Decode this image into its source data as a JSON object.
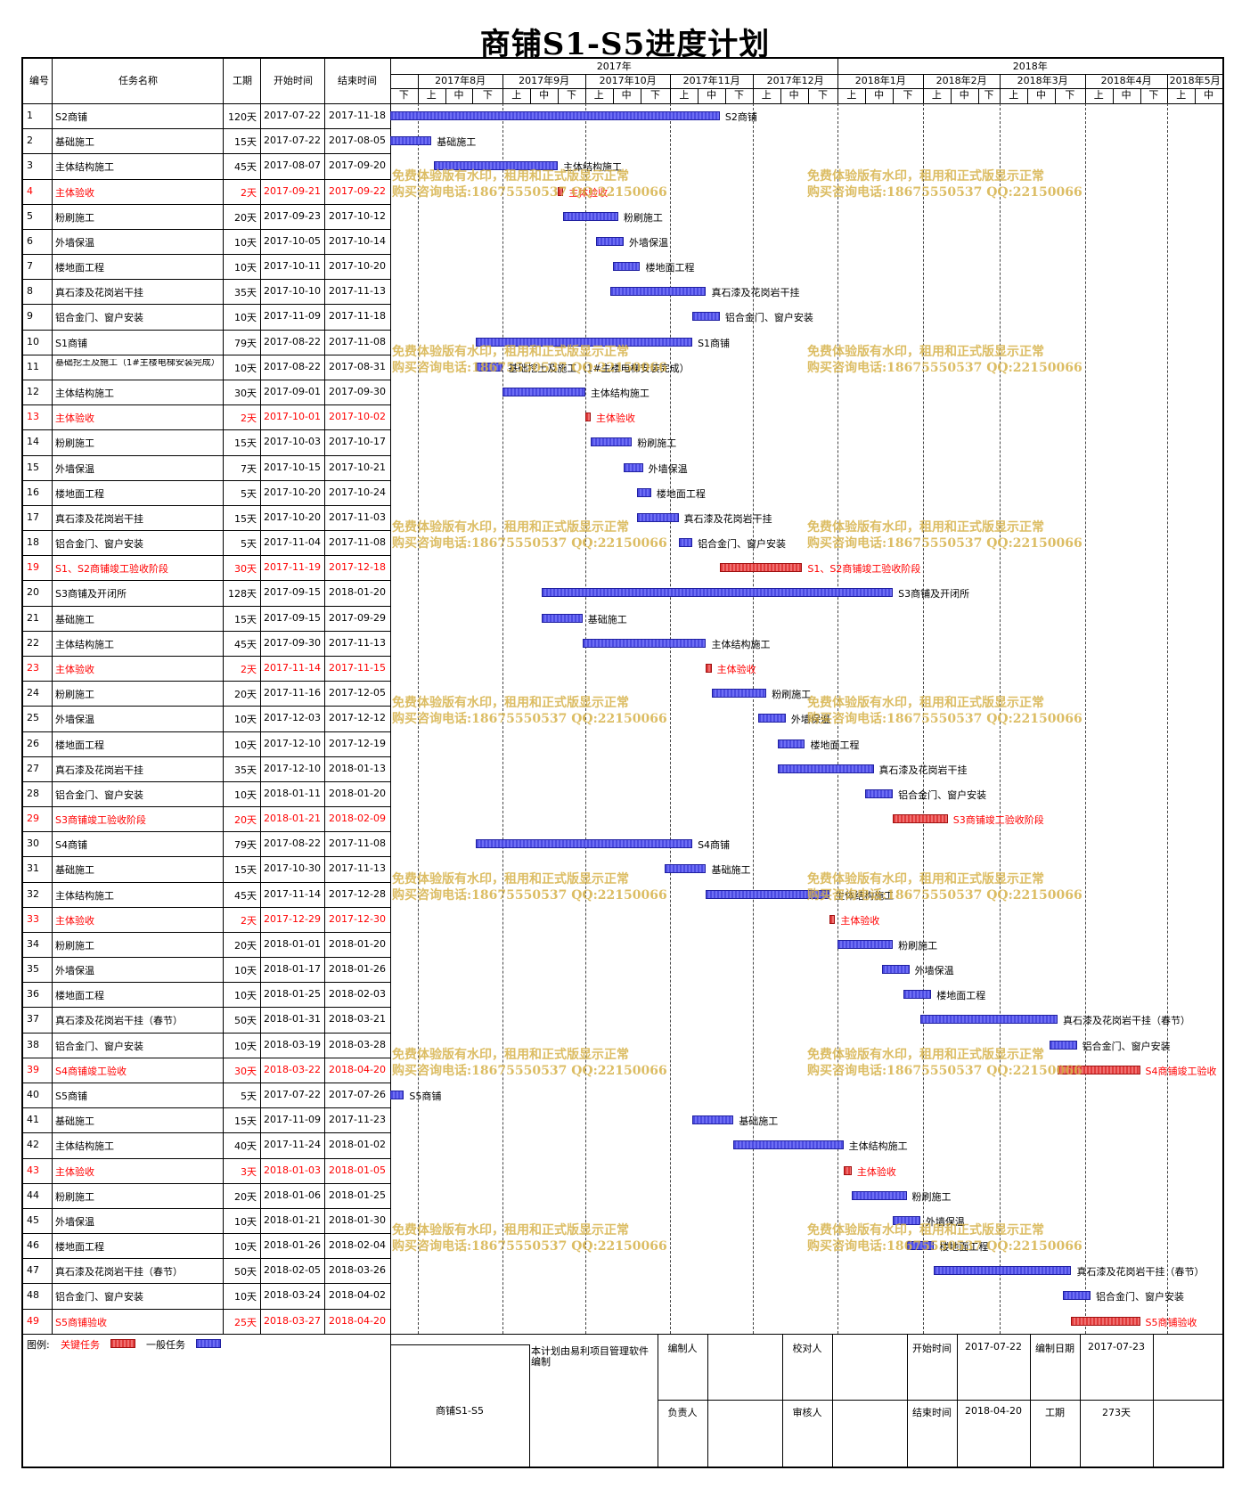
{
  "title": "商铺S1-S5进度计划",
  "headers": {
    "id": "编号",
    "name": "任务名称",
    "duration": "工期",
    "start": "开始时间",
    "end": "结束时间"
  },
  "timeline": {
    "years": [
      "2017年",
      "2018年"
    ],
    "months": [
      "2017年8月",
      "2017年9月",
      "2017年10月",
      "2017年11月",
      "2017年12月",
      "2018年1月",
      "2018年2月",
      "2018年3月",
      "2018年4月",
      "2018年5月"
    ],
    "periods": [
      "下",
      "上",
      "中",
      "下",
      "上",
      "中",
      "下",
      "上",
      "中",
      "下",
      "上",
      "中",
      "下",
      "上",
      "中",
      "下",
      "上",
      "中",
      "下",
      "上",
      "中",
      "下",
      "上",
      "中",
      "下",
      "上",
      "中",
      "下",
      "上",
      "中"
    ]
  },
  "watermark": {
    "line1": "免费体验版有水印，租用和正式版显示正常",
    "line2": "购买咨询电话:18675550537 QQ:22150066"
  },
  "chart_data": {
    "type": "gantt",
    "title": "商铺S1-S5进度计划",
    "x_range": [
      "2017-07-22",
      "2018-05-21"
    ],
    "tasks": [
      {
        "id": "1",
        "name": "S2商铺",
        "duration": "120天",
        "start": "2017-07-22",
        "end": "2017-11-18",
        "critical": false,
        "label": "S2商铺"
      },
      {
        "id": "2",
        "name": "基础施工",
        "duration": "15天",
        "start": "2017-07-22",
        "end": "2017-08-05",
        "critical": false,
        "label": "基础施工"
      },
      {
        "id": "3",
        "name": "主体结构施工",
        "duration": "45天",
        "start": "2017-08-07",
        "end": "2017-09-20",
        "critical": false,
        "label": "主体结构施工"
      },
      {
        "id": "4",
        "name": "主体验收",
        "duration": "2天",
        "start": "2017-09-21",
        "end": "2017-09-22",
        "critical": true,
        "label": "主体验收"
      },
      {
        "id": "5",
        "name": "粉刷施工",
        "duration": "20天",
        "start": "2017-09-23",
        "end": "2017-10-12",
        "critical": false,
        "label": "粉刷施工"
      },
      {
        "id": "6",
        "name": "外墙保温",
        "duration": "10天",
        "start": "2017-10-05",
        "end": "2017-10-14",
        "critical": false,
        "label": "外墙保温"
      },
      {
        "id": "7",
        "name": "楼地面工程",
        "duration": "10天",
        "start": "2017-10-11",
        "end": "2017-10-20",
        "critical": false,
        "label": "楼地面工程"
      },
      {
        "id": "8",
        "name": "真石漆及花岗岩干挂",
        "duration": "35天",
        "start": "2017-10-10",
        "end": "2017-11-13",
        "critical": false,
        "label": "真石漆及花岗岩干挂"
      },
      {
        "id": "9",
        "name": "铝合金门、窗户安装",
        "duration": "10天",
        "start": "2017-11-09",
        "end": "2017-11-18",
        "critical": false,
        "label": "铝合金门、窗户安装"
      },
      {
        "id": "10",
        "name": "S1商铺",
        "duration": "79天",
        "start": "2017-08-22",
        "end": "2017-11-08",
        "critical": false,
        "label": "S1商铺"
      },
      {
        "id": "11",
        "name": "基础挖土及施工（1#主楼电梯安装完成）",
        "duration": "10天",
        "start": "2017-08-22",
        "end": "2017-08-31",
        "critical": false,
        "label": "基础挖土及施工（1#主楼电梯安装完成）"
      },
      {
        "id": "12",
        "name": "主体结构施工",
        "duration": "30天",
        "start": "2017-09-01",
        "end": "2017-09-30",
        "critical": false,
        "label": "主体结构施工"
      },
      {
        "id": "13",
        "name": "主体验收",
        "duration": "2天",
        "start": "2017-10-01",
        "end": "2017-10-02",
        "critical": true,
        "label": "主体验收"
      },
      {
        "id": "14",
        "name": "粉刷施工",
        "duration": "15天",
        "start": "2017-10-03",
        "end": "2017-10-17",
        "critical": false,
        "label": "粉刷施工"
      },
      {
        "id": "15",
        "name": "外墙保温",
        "duration": "7天",
        "start": "2017-10-15",
        "end": "2017-10-21",
        "critical": false,
        "label": "外墙保温"
      },
      {
        "id": "16",
        "name": "楼地面工程",
        "duration": "5天",
        "start": "2017-10-20",
        "end": "2017-10-24",
        "critical": false,
        "label": "楼地面工程"
      },
      {
        "id": "17",
        "name": "真石漆及花岗岩干挂",
        "duration": "15天",
        "start": "2017-10-20",
        "end": "2017-11-03",
        "critical": false,
        "label": "真石漆及花岗岩干挂"
      },
      {
        "id": "18",
        "name": "铝合金门、窗户安装",
        "duration": "5天",
        "start": "2017-11-04",
        "end": "2017-11-08",
        "critical": false,
        "label": "铝合金门、窗户安装"
      },
      {
        "id": "19",
        "name": "S1、S2商铺竣工验收阶段",
        "duration": "30天",
        "start": "2017-11-19",
        "end": "2017-12-18",
        "critical": true,
        "label": "S1、S2商铺竣工验收阶段"
      },
      {
        "id": "20",
        "name": "S3商铺及开闭所",
        "duration": "128天",
        "start": "2017-09-15",
        "end": "2018-01-20",
        "critical": false,
        "label": "S3商铺及开闭所"
      },
      {
        "id": "21",
        "name": "基础施工",
        "duration": "15天",
        "start": "2017-09-15",
        "end": "2017-09-29",
        "critical": false,
        "label": "基础施工"
      },
      {
        "id": "22",
        "name": "主体结构施工",
        "duration": "45天",
        "start": "2017-09-30",
        "end": "2017-11-13",
        "critical": false,
        "label": "主体结构施工"
      },
      {
        "id": "23",
        "name": "主体验收",
        "duration": "2天",
        "start": "2017-11-14",
        "end": "2017-11-15",
        "critical": true,
        "label": "主体验收"
      },
      {
        "id": "24",
        "name": "粉刷施工",
        "duration": "20天",
        "start": "2017-11-16",
        "end": "2017-12-05",
        "critical": false,
        "label": "粉刷施工"
      },
      {
        "id": "25",
        "name": "外墙保温",
        "duration": "10天",
        "start": "2017-12-03",
        "end": "2017-12-12",
        "critical": false,
        "label": "外墙保温"
      },
      {
        "id": "26",
        "name": "楼地面工程",
        "duration": "10天",
        "start": "2017-12-10",
        "end": "2017-12-19",
        "critical": false,
        "label": "楼地面工程"
      },
      {
        "id": "27",
        "name": "真石漆及花岗岩干挂",
        "duration": "35天",
        "start": "2017-12-10",
        "end": "2018-01-13",
        "critical": false,
        "label": "真石漆及花岗岩干挂"
      },
      {
        "id": "28",
        "name": "铝合金门、窗户安装",
        "duration": "10天",
        "start": "2018-01-11",
        "end": "2018-01-20",
        "critical": false,
        "label": "铝合金门、窗户安装"
      },
      {
        "id": "29",
        "name": "S3商铺竣工验收阶段",
        "duration": "20天",
        "start": "2018-01-21",
        "end": "2018-02-09",
        "critical": true,
        "label": "S3商铺竣工验收阶段"
      },
      {
        "id": "30",
        "name": "S4商铺",
        "duration": "79天",
        "start": "2017-08-22",
        "end": "2017-11-08",
        "critical": false,
        "label": "S4商铺"
      },
      {
        "id": "31",
        "name": "基础施工",
        "duration": "15天",
        "start": "2017-10-30",
        "end": "2017-11-13",
        "critical": false,
        "label": "基础施工"
      },
      {
        "id": "32",
        "name": "主体结构施工",
        "duration": "45天",
        "start": "2017-11-14",
        "end": "2017-12-28",
        "critical": false,
        "label": "主体结构施工"
      },
      {
        "id": "33",
        "name": "主体验收",
        "duration": "2天",
        "start": "2017-12-29",
        "end": "2017-12-30",
        "critical": true,
        "label": "主体验收"
      },
      {
        "id": "34",
        "name": "粉刷施工",
        "duration": "20天",
        "start": "2018-01-01",
        "end": "2018-01-20",
        "critical": false,
        "label": "粉刷施工"
      },
      {
        "id": "35",
        "name": "外墙保温",
        "duration": "10天",
        "start": "2018-01-17",
        "end": "2018-01-26",
        "critical": false,
        "label": "外墙保温"
      },
      {
        "id": "36",
        "name": "楼地面工程",
        "duration": "10天",
        "start": "2018-01-25",
        "end": "2018-02-03",
        "critical": false,
        "label": "楼地面工程"
      },
      {
        "id": "37",
        "name": "真石漆及花岗岩干挂（春节）",
        "duration": "50天",
        "start": "2018-01-31",
        "end": "2018-03-21",
        "critical": false,
        "label": "真石漆及花岗岩干挂（春节）"
      },
      {
        "id": "38",
        "name": "铝合金门、窗户安装",
        "duration": "10天",
        "start": "2018-03-19",
        "end": "2018-03-28",
        "critical": false,
        "label": "铝合金门、窗户安装"
      },
      {
        "id": "39",
        "name": "S4商铺竣工验收",
        "duration": "30天",
        "start": "2018-03-22",
        "end": "2018-04-20",
        "critical": true,
        "label": "S4商铺竣工验收"
      },
      {
        "id": "40",
        "name": "S5商铺",
        "duration": "5天",
        "start": "2017-07-22",
        "end": "2017-07-26",
        "critical": false,
        "label": "S5商铺"
      },
      {
        "id": "41",
        "name": "基础施工",
        "duration": "15天",
        "start": "2017-11-09",
        "end": "2017-11-23",
        "critical": false,
        "label": "基础施工"
      },
      {
        "id": "42",
        "name": "主体结构施工",
        "duration": "40天",
        "start": "2017-11-24",
        "end": "2018-01-02",
        "critical": false,
        "label": "主体结构施工"
      },
      {
        "id": "43",
        "name": "主体验收",
        "duration": "3天",
        "start": "2018-01-03",
        "end": "2018-01-05",
        "critical": true,
        "label": "主体验收"
      },
      {
        "id": "44",
        "name": "粉刷施工",
        "duration": "20天",
        "start": "2018-01-06",
        "end": "2018-01-25",
        "critical": false,
        "label": "粉刷施工"
      },
      {
        "id": "45",
        "name": "外墙保温",
        "duration": "10天",
        "start": "2018-01-21",
        "end": "2018-01-30",
        "critical": false,
        "label": "外墙保温"
      },
      {
        "id": "46",
        "name": "楼地面工程",
        "duration": "10天",
        "start": "2018-01-26",
        "end": "2018-02-04",
        "critical": false,
        "label": "楼地面工程"
      },
      {
        "id": "47",
        "name": "真石漆及花岗岩干挂（春节）",
        "duration": "50天",
        "start": "2018-02-05",
        "end": "2018-03-26",
        "critical": false,
        "label": "真石漆及花岗岩干挂（春节）"
      },
      {
        "id": "48",
        "name": "铝合金门、窗户安装",
        "duration": "10天",
        "start": "2018-03-24",
        "end": "2018-04-02",
        "critical": false,
        "label": "铝合金门、窗户安装"
      },
      {
        "id": "49",
        "name": "S5商铺验收",
        "duration": "25天",
        "start": "2018-03-27",
        "end": "2018-04-20",
        "critical": true,
        "label": "S5商铺验收"
      }
    ]
  },
  "legend": {
    "prefix": "图例:",
    "critical": "关键任务",
    "normal": "一般任务",
    "critical_color": "#ee4444",
    "normal_color": "#5050ee"
  },
  "footer": {
    "project": "商铺S1-S5",
    "software_note": "本计划由易利项目管理软件编制",
    "prepared_by": "编制人",
    "checked_by": "校对人",
    "responsible": "负责人",
    "reviewed_by": "审核人",
    "start_label": "开始时间",
    "start_value": "2017-07-22",
    "end_label": "结束时间",
    "end_value": "2018-04-20",
    "date_label": "编制日期",
    "date_value": "2017-07-23",
    "duration_label": "工期",
    "duration_value": "273天"
  }
}
